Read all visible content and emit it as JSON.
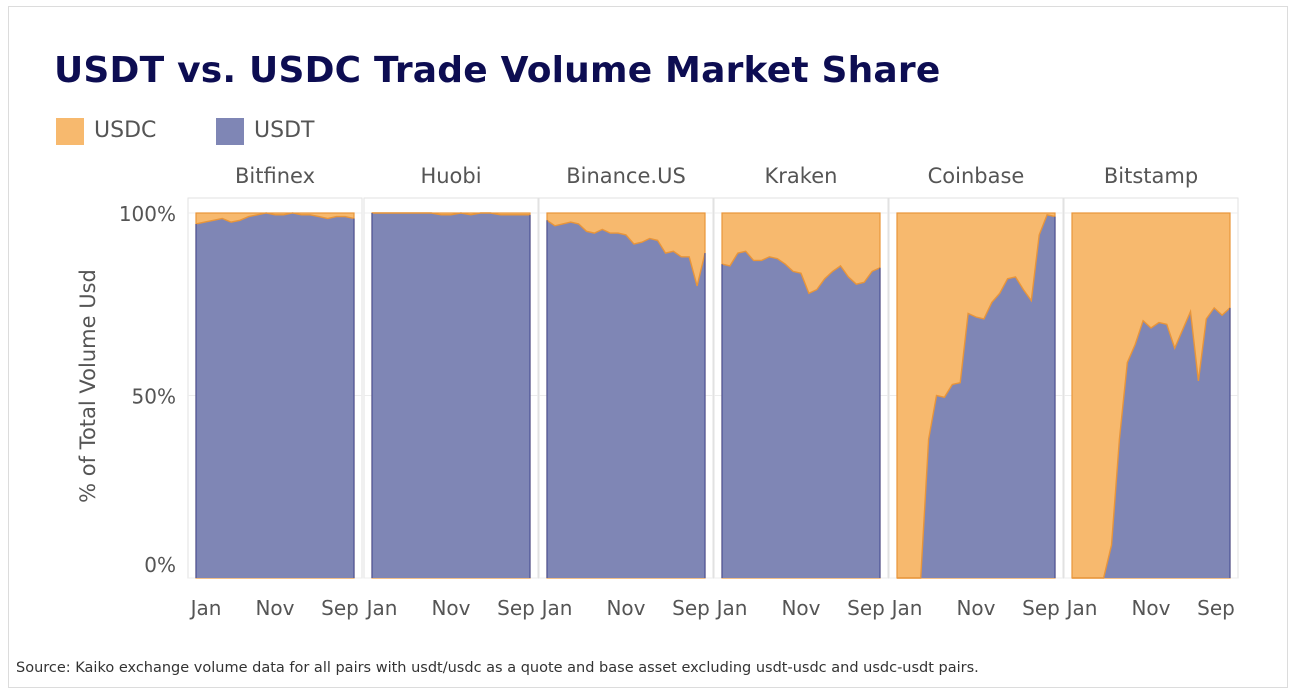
{
  "title": "USDT vs. USDC Trade Volume Market Share",
  "legend": [
    {
      "label": "USDC",
      "color": "#f7b96e"
    },
    {
      "label": "USDT",
      "color": "#7f86b5"
    }
  ],
  "source": "Source: Kaiko exchange volume data for all pairs with usdt/usdc as a quote and base asset excluding usdt-usdc and usdc-usdt pairs.",
  "chart_data": {
    "type": "area",
    "stacked": true,
    "percent": true,
    "ylabel": "% of Total Volume Usd",
    "yticks": [
      "0%",
      "50%",
      "100%"
    ],
    "ylim": [
      0,
      100
    ],
    "xticks": [
      "Jan",
      "Nov",
      "Sep"
    ],
    "colors": {
      "USDC": "#f7b96e",
      "USDT": "#7f86b5",
      "USDC_line": "#e8953a",
      "USDT_line": "#4a5296"
    },
    "legend_position": "top-left",
    "grid": true,
    "panels": [
      {
        "name": "Bitfinex",
        "usdt_share": [
          97,
          97.5,
          98,
          98.5,
          97.5,
          98,
          99,
          99.5,
          100,
          99.5,
          99.5,
          100,
          99.5,
          99.5,
          99,
          98.5,
          99,
          99,
          98.5
        ]
      },
      {
        "name": "Huobi",
        "usdt_share": [
          100,
          100,
          100,
          100,
          100,
          100,
          100,
          99.5,
          99.5,
          100,
          99.5,
          100,
          100,
          99.5,
          99.5,
          99.5,
          99.5
        ]
      },
      {
        "name": "Binance.US",
        "usdt_share": [
          98,
          96.5,
          97,
          97.5,
          97,
          95,
          94.5,
          95.5,
          94.5,
          94.5,
          94,
          91.5,
          92,
          93,
          92.5,
          89,
          89.5,
          88,
          88,
          80,
          89
        ]
      },
      {
        "name": "Kraken",
        "usdt_share": [
          86,
          85.5,
          89,
          89.5,
          87,
          87,
          88,
          87.5,
          86,
          84,
          83.5,
          78,
          79,
          82,
          84,
          85.5,
          82.5,
          80.5,
          81,
          84,
          85
        ]
      },
      {
        "name": "Coinbase",
        "usdt_share": [
          0,
          0,
          0,
          0,
          38,
          50,
          49.5,
          53,
          53.5,
          72.5,
          71.5,
          71,
          75.5,
          78,
          82,
          82.5,
          79,
          76,
          94,
          99.5,
          99
        ]
      },
      {
        "name": "Bitstamp",
        "usdt_share": [
          0,
          0,
          0,
          0,
          0,
          9,
          38,
          59,
          64,
          70.5,
          68.5,
          70,
          69.5,
          63,
          68,
          73,
          54,
          71,
          74,
          72,
          74
        ]
      }
    ]
  }
}
